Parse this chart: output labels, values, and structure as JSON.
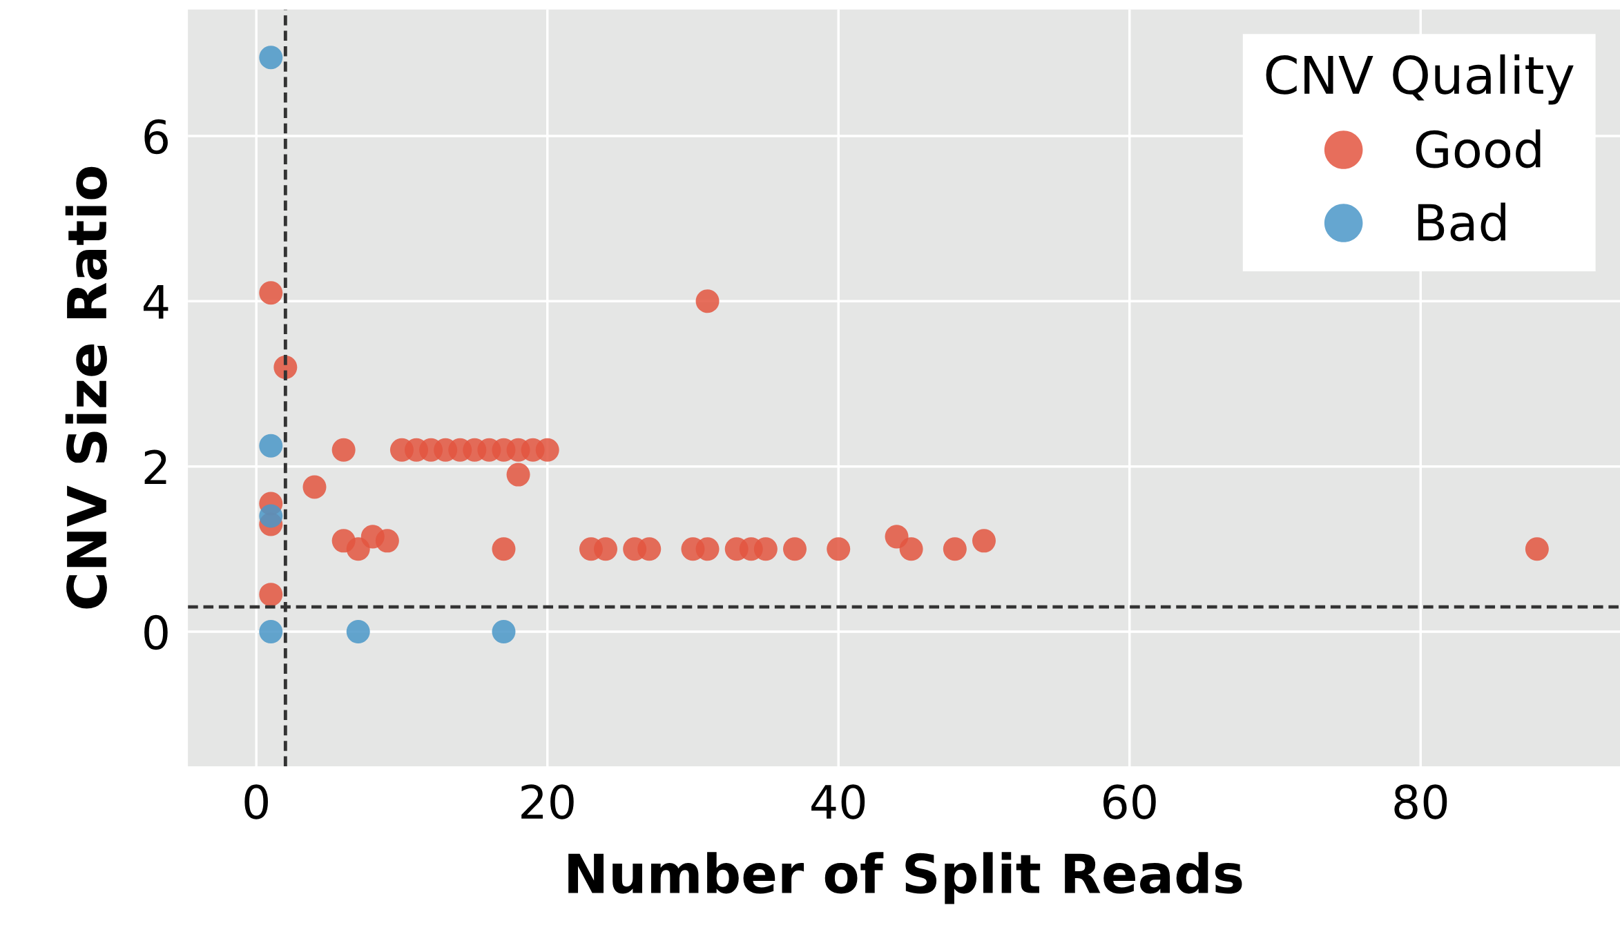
{
  "chart_data": {
    "type": "scatter",
    "xlabel": "Number of Split Reads",
    "ylabel": "CNV Size Ratio",
    "legend_title": "CNV Quality",
    "series": [
      {
        "name": "Good",
        "color": "#e3553f",
        "x": [
          1,
          2,
          6,
          10,
          11,
          12,
          13,
          14,
          15,
          16,
          17,
          18,
          19,
          20,
          18,
          4,
          1,
          1,
          6,
          7,
          8,
          9,
          17,
          23,
          24,
          26,
          27,
          30,
          31,
          33,
          34,
          35,
          37,
          40,
          44,
          45,
          48,
          50,
          88,
          31,
          1
        ],
        "values": [
          4.1,
          3.2,
          2.2,
          2.2,
          2.2,
          2.2,
          2.2,
          2.2,
          2.2,
          2.2,
          2.2,
          2.2,
          2.2,
          2.2,
          1.9,
          1.75,
          1.55,
          1.3,
          1.1,
          1.0,
          1.15,
          1.1,
          1.0,
          1.0,
          1.0,
          1.0,
          1.0,
          1.0,
          1.0,
          1.0,
          1.0,
          1.0,
          1.0,
          1.0,
          1.15,
          1.0,
          1.0,
          1.1,
          1.0,
          4.0,
          0.45
        ]
      },
      {
        "name": "Bad",
        "color": "#4a97c8",
        "x": [
          1,
          1,
          1,
          1,
          7,
          17
        ],
        "values": [
          6.95,
          2.25,
          1.4,
          0.0,
          0.0,
          0.0
        ]
      }
    ],
    "ref_lines": [
      {
        "axis": "x",
        "value": 2,
        "label": null,
        "color": "#333333",
        "line_style": "dashed"
      },
      {
        "axis": "y",
        "value": 0.3,
        "label": null,
        "color": "#333333",
        "line_style": "dashed"
      }
    ],
    "xlim": [
      -4.7,
      93.7
    ],
    "ylim": [
      -1.63,
      7.53
    ],
    "xticks": [
      0,
      20,
      40,
      60,
      80
    ],
    "yticks": [
      0,
      2,
      4,
      6
    ],
    "grid": true,
    "legend": "top right",
    "marker": "circle"
  }
}
